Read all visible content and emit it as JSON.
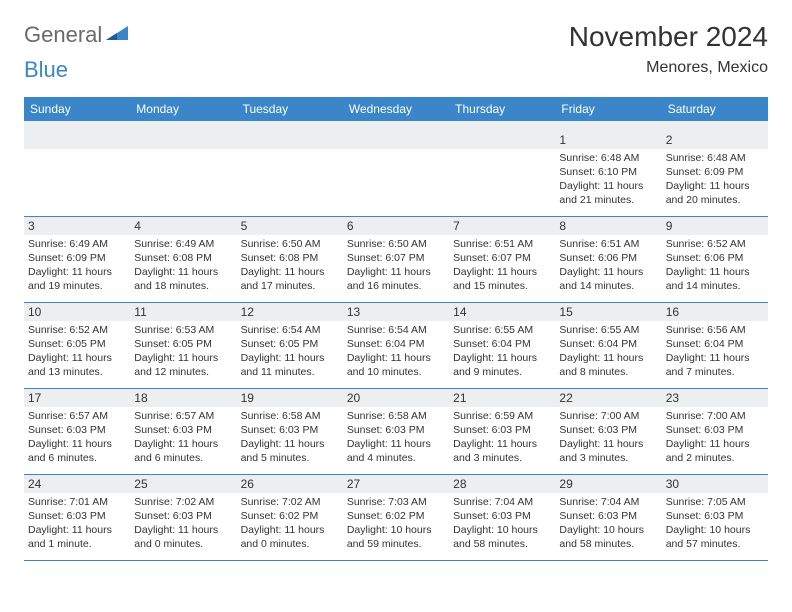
{
  "logo": {
    "word1": "General",
    "word2": "Blue"
  },
  "title": "November 2024",
  "location": "Menores, Mexico",
  "colors": {
    "header_bg": "#3b86c8",
    "header_text": "#ffffff",
    "daynum_bg": "#eceeef",
    "text": "#333333",
    "logo_gray": "#6a6a6a",
    "logo_blue": "#3b86c8",
    "row_border": "#3b86c8"
  },
  "weekdays": [
    "Sunday",
    "Monday",
    "Tuesday",
    "Wednesday",
    "Thursday",
    "Friday",
    "Saturday"
  ],
  "weeks": [
    [
      null,
      null,
      null,
      null,
      null,
      {
        "n": "1",
        "sunrise": "Sunrise: 6:48 AM",
        "sunset": "Sunset: 6:10 PM",
        "day1": "Daylight: 11 hours",
        "day2": "and 21 minutes."
      },
      {
        "n": "2",
        "sunrise": "Sunrise: 6:48 AM",
        "sunset": "Sunset: 6:09 PM",
        "day1": "Daylight: 11 hours",
        "day2": "and 20 minutes."
      }
    ],
    [
      {
        "n": "3",
        "sunrise": "Sunrise: 6:49 AM",
        "sunset": "Sunset: 6:09 PM",
        "day1": "Daylight: 11 hours",
        "day2": "and 19 minutes."
      },
      {
        "n": "4",
        "sunrise": "Sunrise: 6:49 AM",
        "sunset": "Sunset: 6:08 PM",
        "day1": "Daylight: 11 hours",
        "day2": "and 18 minutes."
      },
      {
        "n": "5",
        "sunrise": "Sunrise: 6:50 AM",
        "sunset": "Sunset: 6:08 PM",
        "day1": "Daylight: 11 hours",
        "day2": "and 17 minutes."
      },
      {
        "n": "6",
        "sunrise": "Sunrise: 6:50 AM",
        "sunset": "Sunset: 6:07 PM",
        "day1": "Daylight: 11 hours",
        "day2": "and 16 minutes."
      },
      {
        "n": "7",
        "sunrise": "Sunrise: 6:51 AM",
        "sunset": "Sunset: 6:07 PM",
        "day1": "Daylight: 11 hours",
        "day2": "and 15 minutes."
      },
      {
        "n": "8",
        "sunrise": "Sunrise: 6:51 AM",
        "sunset": "Sunset: 6:06 PM",
        "day1": "Daylight: 11 hours",
        "day2": "and 14 minutes."
      },
      {
        "n": "9",
        "sunrise": "Sunrise: 6:52 AM",
        "sunset": "Sunset: 6:06 PM",
        "day1": "Daylight: 11 hours",
        "day2": "and 14 minutes."
      }
    ],
    [
      {
        "n": "10",
        "sunrise": "Sunrise: 6:52 AM",
        "sunset": "Sunset: 6:05 PM",
        "day1": "Daylight: 11 hours",
        "day2": "and 13 minutes."
      },
      {
        "n": "11",
        "sunrise": "Sunrise: 6:53 AM",
        "sunset": "Sunset: 6:05 PM",
        "day1": "Daylight: 11 hours",
        "day2": "and 12 minutes."
      },
      {
        "n": "12",
        "sunrise": "Sunrise: 6:54 AM",
        "sunset": "Sunset: 6:05 PM",
        "day1": "Daylight: 11 hours",
        "day2": "and 11 minutes."
      },
      {
        "n": "13",
        "sunrise": "Sunrise: 6:54 AM",
        "sunset": "Sunset: 6:04 PM",
        "day1": "Daylight: 11 hours",
        "day2": "and 10 minutes."
      },
      {
        "n": "14",
        "sunrise": "Sunrise: 6:55 AM",
        "sunset": "Sunset: 6:04 PM",
        "day1": "Daylight: 11 hours",
        "day2": "and 9 minutes."
      },
      {
        "n": "15",
        "sunrise": "Sunrise: 6:55 AM",
        "sunset": "Sunset: 6:04 PM",
        "day1": "Daylight: 11 hours",
        "day2": "and 8 minutes."
      },
      {
        "n": "16",
        "sunrise": "Sunrise: 6:56 AM",
        "sunset": "Sunset: 6:04 PM",
        "day1": "Daylight: 11 hours",
        "day2": "and 7 minutes."
      }
    ],
    [
      {
        "n": "17",
        "sunrise": "Sunrise: 6:57 AM",
        "sunset": "Sunset: 6:03 PM",
        "day1": "Daylight: 11 hours",
        "day2": "and 6 minutes."
      },
      {
        "n": "18",
        "sunrise": "Sunrise: 6:57 AM",
        "sunset": "Sunset: 6:03 PM",
        "day1": "Daylight: 11 hours",
        "day2": "and 6 minutes."
      },
      {
        "n": "19",
        "sunrise": "Sunrise: 6:58 AM",
        "sunset": "Sunset: 6:03 PM",
        "day1": "Daylight: 11 hours",
        "day2": "and 5 minutes."
      },
      {
        "n": "20",
        "sunrise": "Sunrise: 6:58 AM",
        "sunset": "Sunset: 6:03 PM",
        "day1": "Daylight: 11 hours",
        "day2": "and 4 minutes."
      },
      {
        "n": "21",
        "sunrise": "Sunrise: 6:59 AM",
        "sunset": "Sunset: 6:03 PM",
        "day1": "Daylight: 11 hours",
        "day2": "and 3 minutes."
      },
      {
        "n": "22",
        "sunrise": "Sunrise: 7:00 AM",
        "sunset": "Sunset: 6:03 PM",
        "day1": "Daylight: 11 hours",
        "day2": "and 3 minutes."
      },
      {
        "n": "23",
        "sunrise": "Sunrise: 7:00 AM",
        "sunset": "Sunset: 6:03 PM",
        "day1": "Daylight: 11 hours",
        "day2": "and 2 minutes."
      }
    ],
    [
      {
        "n": "24",
        "sunrise": "Sunrise: 7:01 AM",
        "sunset": "Sunset: 6:03 PM",
        "day1": "Daylight: 11 hours",
        "day2": "and 1 minute."
      },
      {
        "n": "25",
        "sunrise": "Sunrise: 7:02 AM",
        "sunset": "Sunset: 6:03 PM",
        "day1": "Daylight: 11 hours",
        "day2": "and 0 minutes."
      },
      {
        "n": "26",
        "sunrise": "Sunrise: 7:02 AM",
        "sunset": "Sunset: 6:02 PM",
        "day1": "Daylight: 11 hours",
        "day2": "and 0 minutes."
      },
      {
        "n": "27",
        "sunrise": "Sunrise: 7:03 AM",
        "sunset": "Sunset: 6:02 PM",
        "day1": "Daylight: 10 hours",
        "day2": "and 59 minutes."
      },
      {
        "n": "28",
        "sunrise": "Sunrise: 7:04 AM",
        "sunset": "Sunset: 6:03 PM",
        "day1": "Daylight: 10 hours",
        "day2": "and 58 minutes."
      },
      {
        "n": "29",
        "sunrise": "Sunrise: 7:04 AM",
        "sunset": "Sunset: 6:03 PM",
        "day1": "Daylight: 10 hours",
        "day2": "and 58 minutes."
      },
      {
        "n": "30",
        "sunrise": "Sunrise: 7:05 AM",
        "sunset": "Sunset: 6:03 PM",
        "day1": "Daylight: 10 hours",
        "day2": "and 57 minutes."
      }
    ]
  ]
}
